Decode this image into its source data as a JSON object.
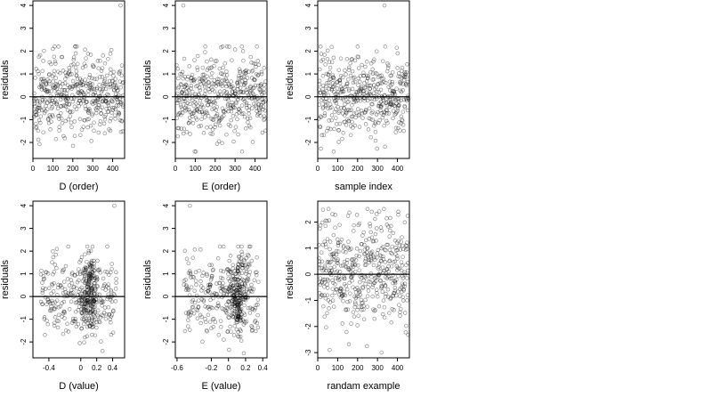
{
  "chart_data": [
    {
      "type": "scatter",
      "xlabel": "D (order)",
      "ylabel": "residuals",
      "xlim": [
        0,
        460
      ],
      "ylim": [
        -2.7,
        4.2
      ],
      "xticks": [
        0,
        100,
        200,
        300,
        400
      ],
      "yticks": [
        -2,
        -1,
        0,
        1,
        2,
        3,
        4
      ],
      "hline": 0,
      "n_points": 460,
      "points_note": "approximately 460 residuals in [-2.4, 2.2], one outlier near 4.0",
      "outliers": [
        [
          440,
          4.0
        ],
        [
          30,
          1.75
        ],
        [
          215,
          1.9
        ],
        [
          100,
          2.1
        ]
      ]
    },
    {
      "type": "scatter",
      "xlabel": "E (order)",
      "ylabel": "residuals",
      "xlim": [
        0,
        460
      ],
      "ylim": [
        -2.7,
        4.2
      ],
      "xticks": [
        0,
        100,
        200,
        300,
        400
      ],
      "yticks": [
        -2,
        -1,
        0,
        1,
        2,
        3,
        4
      ],
      "hline": 0,
      "n_points": 460,
      "outliers": [
        [
          40,
          4.0
        ],
        [
          150,
          2.2
        ],
        [
          340,
          2.0
        ],
        [
          335,
          -2.4
        ]
      ]
    },
    {
      "type": "scatter",
      "xlabel": "sample index",
      "ylabel": "residuals",
      "xlim": [
        0,
        460
      ],
      "ylim": [
        -2.7,
        4.2
      ],
      "xticks": [
        0,
        100,
        200,
        300,
        400
      ],
      "yticks": [
        -2,
        -1,
        0,
        1,
        2,
        3,
        4
      ],
      "hline": 0,
      "n_points": 460,
      "outliers": [
        [
          335,
          4.0
        ],
        [
          80,
          -2.4
        ],
        [
          200,
          2.2
        ]
      ]
    },
    {
      "type": "scatter",
      "xlabel": "D (value)",
      "ylabel": "residuals",
      "xlim": [
        -0.6,
        0.55
      ],
      "ylim": [
        -2.7,
        4.2
      ],
      "xticks": [
        -0.4,
        0.0,
        0.2,
        0.4
      ],
      "yticks": [
        -2,
        -1,
        0,
        1,
        2,
        3,
        4
      ],
      "hline": 0,
      "n_points": 460,
      "outliers": [
        [
          0.42,
          4.0
        ],
        [
          -0.3,
          2.1
        ],
        [
          0.1,
          2.0
        ]
      ]
    },
    {
      "type": "scatter",
      "xlabel": "E (value)",
      "ylabel": "residuals",
      "xlim": [
        -0.62,
        0.45
      ],
      "ylim": [
        -2.7,
        4.2
      ],
      "xticks": [
        -0.6,
        -0.2,
        0.0,
        0.2,
        0.4
      ],
      "yticks": [
        -2,
        -1,
        0,
        1,
        2,
        3,
        4
      ],
      "hline": 0,
      "n_points": 460,
      "outliers": [
        [
          -0.45,
          4.0
        ],
        [
          0.18,
          -2.5
        ],
        [
          -0.1,
          2.2
        ]
      ]
    },
    {
      "type": "scatter",
      "xlabel": "randam example",
      "ylabel": "residuals",
      "xlim": [
        0,
        460
      ],
      "ylim": [
        -3.2,
        2.8
      ],
      "xticks": [
        0,
        100,
        200,
        300,
        400
      ],
      "yticks": [
        -3,
        -2,
        -1,
        0,
        1,
        2
      ],
      "hline": 0,
      "n_points": 460,
      "outliers": [
        [
          320,
          -3.0
        ],
        [
          60,
          -2.9
        ],
        [
          250,
          2.5
        ]
      ]
    }
  ]
}
